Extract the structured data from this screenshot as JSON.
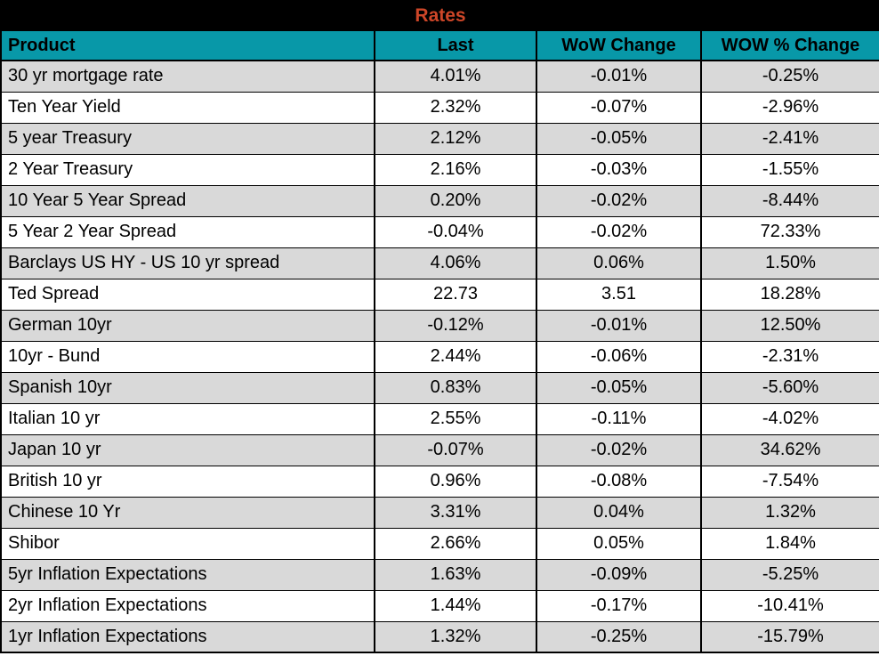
{
  "title": "Rates",
  "colors": {
    "title_bg": "#000000",
    "title_text": "#CD4628",
    "header_bg": "#0898A8",
    "header_text": "#000000",
    "row_alt_bg": "#D9D9D9",
    "row_bg": "#FFFFFF",
    "border": "#000000"
  },
  "table": {
    "columns": [
      "Product",
      "Last",
      "WoW Change",
      "WOW % Change"
    ],
    "rows": [
      [
        "30 yr mortgage rate",
        "4.01%",
        "-0.01%",
        "-0.25%"
      ],
      [
        "Ten Year Yield",
        "2.32%",
        "-0.07%",
        "-2.96%"
      ],
      [
        "5 year Treasury",
        "2.12%",
        "-0.05%",
        "-2.41%"
      ],
      [
        "2 Year Treasury",
        "2.16%",
        "-0.03%",
        "-1.55%"
      ],
      [
        "10 Year 5 Year Spread",
        "0.20%",
        "-0.02%",
        "-8.44%"
      ],
      [
        "5 Year 2 Year Spread",
        "-0.04%",
        "-0.02%",
        "72.33%"
      ],
      [
        "Barclays US HY - US 10 yr spread",
        "4.06%",
        "0.06%",
        "1.50%"
      ],
      [
        "Ted Spread",
        "22.73",
        "3.51",
        "18.28%"
      ],
      [
        "German 10yr",
        "-0.12%",
        "-0.01%",
        "12.50%"
      ],
      [
        "10yr - Bund",
        "2.44%",
        "-0.06%",
        "-2.31%"
      ],
      [
        "Spanish 10yr",
        "0.83%",
        "-0.05%",
        "-5.60%"
      ],
      [
        "Italian 10 yr",
        "2.55%",
        "-0.11%",
        "-4.02%"
      ],
      [
        "Japan 10 yr",
        "-0.07%",
        "-0.02%",
        "34.62%"
      ],
      [
        "British 10 yr",
        "0.96%",
        "-0.08%",
        "-7.54%"
      ],
      [
        "Chinese 10 Yr",
        "3.31%",
        "0.04%",
        "1.32%"
      ],
      [
        "Shibor",
        "2.66%",
        "0.05%",
        "1.84%"
      ],
      [
        "5yr Inflation Expectations",
        "1.63%",
        "-0.09%",
        "-5.25%"
      ],
      [
        "2yr Inflation Expectations",
        "1.44%",
        "-0.17%",
        "-10.41%"
      ],
      [
        "1yr Inflation Expectations",
        "1.32%",
        "-0.25%",
        "-15.79%"
      ]
    ]
  },
  "chart_data": {
    "type": "table",
    "title": "Rates",
    "columns": [
      "Product",
      "Last",
      "WoW Change",
      "WOW % Change"
    ],
    "rows": [
      {
        "product": "30 yr mortgage rate",
        "last": "4.01%",
        "wow_change": "-0.01%",
        "wow_pct_change": "-0.25%"
      },
      {
        "product": "Ten Year Yield",
        "last": "2.32%",
        "wow_change": "-0.07%",
        "wow_pct_change": "-2.96%"
      },
      {
        "product": "5 year Treasury",
        "last": "2.12%",
        "wow_change": "-0.05%",
        "wow_pct_change": "-2.41%"
      },
      {
        "product": "2 Year Treasury",
        "last": "2.16%",
        "wow_change": "-0.03%",
        "wow_pct_change": "-1.55%"
      },
      {
        "product": "10 Year 5 Year Spread",
        "last": "0.20%",
        "wow_change": "-0.02%",
        "wow_pct_change": "-8.44%"
      },
      {
        "product": "5 Year 2 Year Spread",
        "last": "-0.04%",
        "wow_change": "-0.02%",
        "wow_pct_change": "72.33%"
      },
      {
        "product": "Barclays US HY - US 10 yr spread",
        "last": "4.06%",
        "wow_change": "0.06%",
        "wow_pct_change": "1.50%"
      },
      {
        "product": "Ted Spread",
        "last": "22.73",
        "wow_change": "3.51",
        "wow_pct_change": "18.28%"
      },
      {
        "product": "German 10yr",
        "last": "-0.12%",
        "wow_change": "-0.01%",
        "wow_pct_change": "12.50%"
      },
      {
        "product": "10yr - Bund",
        "last": "2.44%",
        "wow_change": "-0.06%",
        "wow_pct_change": "-2.31%"
      },
      {
        "product": "Spanish 10yr",
        "last": "0.83%",
        "wow_change": "-0.05%",
        "wow_pct_change": "-5.60%"
      },
      {
        "product": "Italian 10 yr",
        "last": "2.55%",
        "wow_change": "-0.11%",
        "wow_pct_change": "-4.02%"
      },
      {
        "product": "Japan 10 yr",
        "last": "-0.07%",
        "wow_change": "-0.02%",
        "wow_pct_change": "34.62%"
      },
      {
        "product": "British 10 yr",
        "last": "0.96%",
        "wow_change": "-0.08%",
        "wow_pct_change": "-7.54%"
      },
      {
        "product": "Chinese 10 Yr",
        "last": "3.31%",
        "wow_change": "0.04%",
        "wow_pct_change": "1.32%"
      },
      {
        "product": "Shibor",
        "last": "2.66%",
        "wow_change": "0.05%",
        "wow_pct_change": "1.84%"
      },
      {
        "product": "5yr Inflation Expectations",
        "last": "1.63%",
        "wow_change": "-0.09%",
        "wow_pct_change": "-5.25%"
      },
      {
        "product": "2yr Inflation Expectations",
        "last": "1.44%",
        "wow_change": "-0.17%",
        "wow_pct_change": "-10.41%"
      },
      {
        "product": "1yr Inflation Expectations",
        "last": "1.32%",
        "wow_change": "-0.25%",
        "wow_pct_change": "-15.79%"
      }
    ]
  }
}
